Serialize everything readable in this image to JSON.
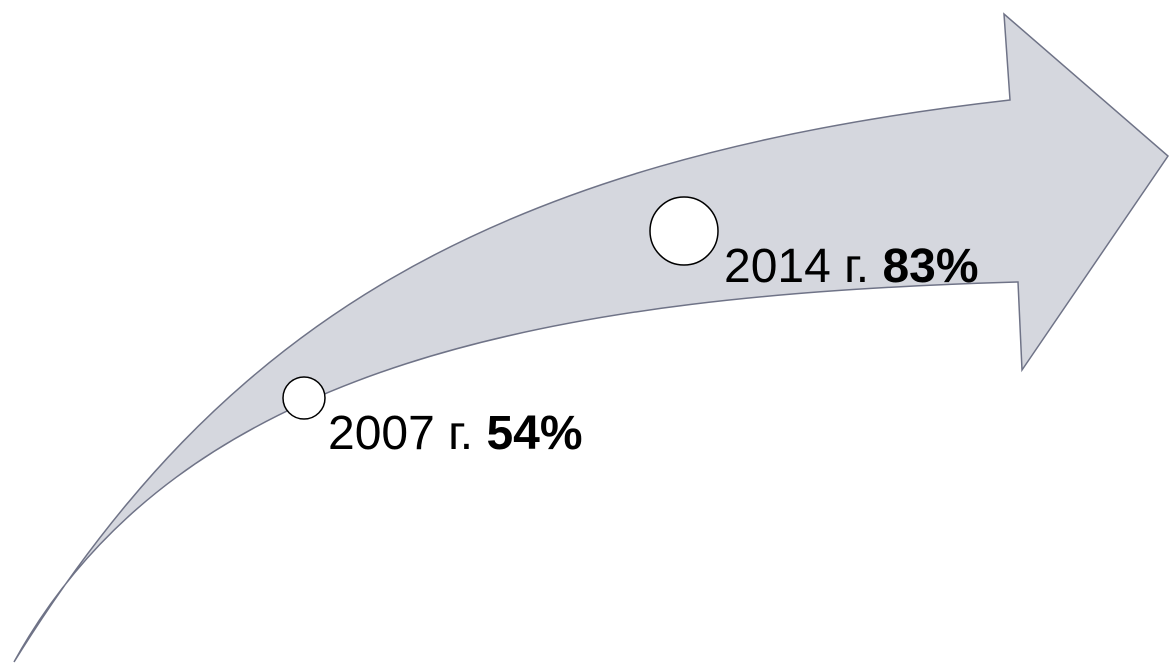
{
  "colors": {
    "arrow_fill": "#d5d7de",
    "arrow_stroke": "#6f7387",
    "marker_fill": "#ffffff",
    "marker_stroke": "#000000"
  },
  "milestones": [
    {
      "year_label": "2007 г.",
      "value_label": "54%"
    },
    {
      "year_label": "2014 г.",
      "value_label": "83%"
    }
  ]
}
